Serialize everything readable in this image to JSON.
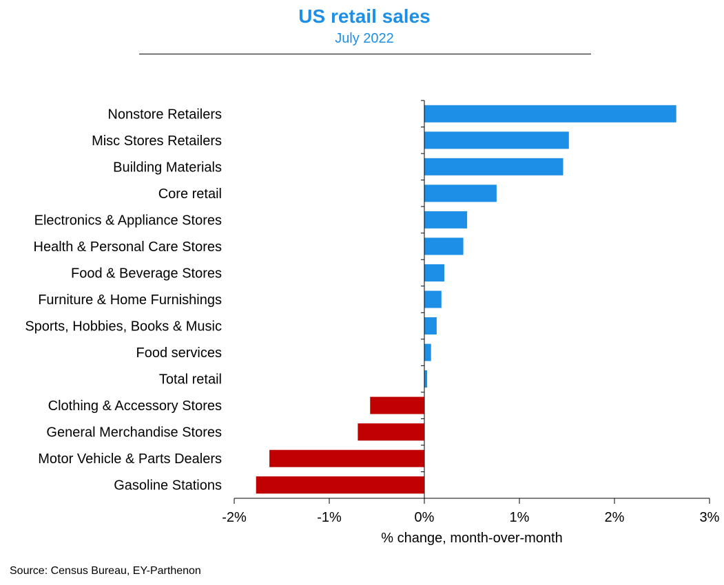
{
  "header": {
    "title": "US retail sales",
    "subtitle": "July 2022"
  },
  "footer": {
    "source": "Source: Census Bureau, EY-Parthenon"
  },
  "colors": {
    "title": "#1e8fe6",
    "positive_bar": "#1e8fe6",
    "negative_bar": "#c00000",
    "axis": "#000000"
  },
  "chart_data": {
    "type": "bar",
    "orientation": "horizontal",
    "categories": [
      "Nonstore Retailers",
      "Misc Stores Retailers",
      "Building Materials",
      "Core retail",
      "Electronics & Appliance Stores",
      "Health & Personal Care Stores",
      "Food & Beverage Stores",
      "Furniture & Home Furnishings",
      "Sports, Hobbies, Books & Music",
      "Food services",
      "Total retail",
      "Clothing & Accessory Stores",
      "General Merchandise Stores",
      "Motor Vehicle & Parts Dealers",
      "Gasoline Stations"
    ],
    "values": [
      2.65,
      1.52,
      1.46,
      0.76,
      0.45,
      0.41,
      0.21,
      0.18,
      0.13,
      0.07,
      0.03,
      -0.57,
      -0.7,
      -1.63,
      -1.77
    ],
    "xlabel": "% change, month-over-month",
    "ylabel": "",
    "xlim": [
      -2,
      3
    ],
    "xticks": [
      -2,
      -1,
      0,
      1,
      2,
      3
    ],
    "xtick_labels": [
      "-2%",
      "-1%",
      "0%",
      "1%",
      "2%",
      "3%"
    ],
    "grid": false,
    "legend": "none"
  }
}
